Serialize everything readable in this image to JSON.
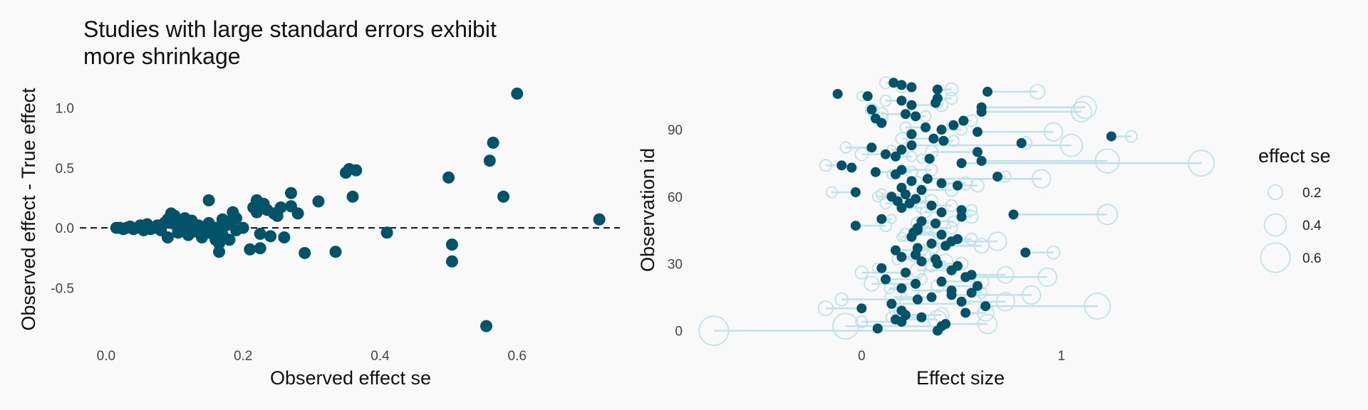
{
  "colors": {
    "point": "#02536a",
    "ghost": "#bfe2e8",
    "zero_line": "#111111",
    "background": "#f9f9f9"
  },
  "chart_data": [
    {
      "type": "scatter",
      "title_lines": [
        "Studies with large standard errors exhibit",
        "more shrinkage"
      ],
      "xlabel": "Observed effect se",
      "ylabel": "Observed effect - True effect",
      "xlim": [
        -0.03,
        0.75
      ],
      "ylim": [
        -0.92,
        1.2
      ],
      "xticks": [
        0.0,
        0.2,
        0.4,
        0.6
      ],
      "xtick_labels": [
        "0.0",
        "0.2",
        "0.4",
        "0.6"
      ],
      "yticks": [
        -0.5,
        0.0,
        0.5,
        1.0
      ],
      "ytick_labels": [
        "-0.5",
        "0.0",
        "0.5",
        "1.0"
      ],
      "reference_line": {
        "y": 0.0,
        "style": "dashed"
      },
      "points": [
        [
          0.015,
          0.0
        ],
        [
          0.02,
          0.0
        ],
        [
          0.025,
          -0.01
        ],
        [
          0.03,
          0.0
        ],
        [
          0.035,
          0.01
        ],
        [
          0.04,
          -0.01
        ],
        [
          0.045,
          0.0
        ],
        [
          0.05,
          0.02
        ],
        [
          0.055,
          -0.02
        ],
        [
          0.06,
          0.01
        ],
        [
          0.06,
          0.03
        ],
        [
          0.065,
          -0.01
        ],
        [
          0.07,
          0.0
        ],
        [
          0.075,
          0.02
        ],
        [
          0.08,
          -0.02
        ],
        [
          0.085,
          0.04
        ],
        [
          0.09,
          0.07
        ],
        [
          0.09,
          -0.08
        ],
        [
          0.095,
          0.12
        ],
        [
          0.1,
          0.1
        ],
        [
          0.1,
          0.03
        ],
        [
          0.105,
          -0.04
        ],
        [
          0.11,
          0.05
        ],
        [
          0.115,
          0.08
        ],
        [
          0.12,
          0.0
        ],
        [
          0.12,
          -0.06
        ],
        [
          0.125,
          0.06
        ],
        [
          0.13,
          -0.03
        ],
        [
          0.135,
          0.02
        ],
        [
          0.14,
          -0.08
        ],
        [
          0.145,
          0.0
        ],
        [
          0.15,
          0.23
        ],
        [
          0.15,
          0.04
        ],
        [
          0.155,
          -0.05
        ],
        [
          0.16,
          -0.1
        ],
        [
          0.16,
          0.0
        ],
        [
          0.165,
          -0.13
        ],
        [
          0.165,
          -0.2
        ],
        [
          0.17,
          0.07
        ],
        [
          0.17,
          -0.06
        ],
        [
          0.175,
          0.02
        ],
        [
          0.18,
          -0.1
        ],
        [
          0.18,
          0.05
        ],
        [
          0.185,
          0.13
        ],
        [
          0.19,
          0.08
        ],
        [
          0.19,
          -0.02
        ],
        [
          0.2,
          0.0
        ],
        [
          0.21,
          -0.18
        ],
        [
          0.215,
          0.17
        ],
        [
          0.22,
          0.23
        ],
        [
          0.22,
          0.13
        ],
        [
          0.225,
          -0.05
        ],
        [
          0.225,
          -0.17
        ],
        [
          0.23,
          0.2
        ],
        [
          0.235,
          0.15
        ],
        [
          0.24,
          -0.07
        ],
        [
          0.245,
          0.12
        ],
        [
          0.25,
          0.1
        ],
        [
          0.255,
          0.17
        ],
        [
          0.26,
          -0.08
        ],
        [
          0.27,
          0.29
        ],
        [
          0.27,
          0.18
        ],
        [
          0.28,
          0.12
        ],
        [
          0.29,
          -0.21
        ],
        [
          0.31,
          0.22
        ],
        [
          0.335,
          -0.2
        ],
        [
          0.35,
          0.46
        ],
        [
          0.355,
          0.49
        ],
        [
          0.36,
          0.26
        ],
        [
          0.365,
          0.48
        ],
        [
          0.41,
          -0.04
        ],
        [
          0.5,
          0.42
        ],
        [
          0.505,
          -0.14
        ],
        [
          0.505,
          -0.28
        ],
        [
          0.555,
          -0.82
        ],
        [
          0.56,
          0.56
        ],
        [
          0.565,
          0.71
        ],
        [
          0.58,
          0.26
        ],
        [
          0.6,
          1.12
        ],
        [
          0.72,
          0.07
        ]
      ]
    },
    {
      "type": "dumbbell",
      "xlabel": "Effect size",
      "ylabel": "Observation id",
      "xlim": [
        -0.8,
        1.75
      ],
      "ylim": [
        -3,
        113
      ],
      "xticks": [
        0,
        1
      ],
      "xtick_labels": [
        "0",
        "1"
      ],
      "yticks": [
        0,
        30,
        60,
        90
      ],
      "ytick_labels": [
        "0",
        "30",
        "60",
        "90"
      ],
      "legend": {
        "title": "effect se",
        "entries": [
          {
            "label": "0.2",
            "se": 0.2
          },
          {
            "label": "0.4",
            "se": 0.4
          },
          {
            "label": "0.6",
            "se": 0.6
          }
        ]
      },
      "observations": [
        {
          "id": 0,
          "observed": -0.74,
          "true": 0.38,
          "se": 0.6
        },
        {
          "id": 1,
          "observed": 0.08,
          "true": 0.08,
          "se": 0.05
        },
        {
          "id": 2,
          "observed": -0.08,
          "true": 0.4,
          "se": 0.5
        },
        {
          "id": 3,
          "observed": 0.63,
          "true": 0.42,
          "se": 0.32
        },
        {
          "id": 4,
          "observed": 0.0,
          "true": 0.2,
          "se": 0.12
        },
        {
          "id": 5,
          "observed": 0.38,
          "true": 0.17,
          "se": 0.3
        },
        {
          "id": 6,
          "observed": 0.15,
          "true": 0.3,
          "se": 0.1
        },
        {
          "id": 7,
          "observed": 0.4,
          "true": 0.22,
          "se": 0.2
        },
        {
          "id": 8,
          "observed": 0.62,
          "true": 0.52,
          "se": 0.25
        },
        {
          "id": 9,
          "observed": 0.16,
          "true": 0.2,
          "se": 0.05
        },
        {
          "id": 10,
          "observed": -0.18,
          "true": 0.0,
          "se": 0.2
        },
        {
          "id": 11,
          "observed": 1.18,
          "true": 0.62,
          "se": 0.5
        },
        {
          "id": 12,
          "observed": 0.55,
          "true": 0.15,
          "se": 0.35
        },
        {
          "id": 13,
          "observed": 0.72,
          "true": 0.5,
          "se": 0.3
        },
        {
          "id": 14,
          "observed": -0.1,
          "true": 0.28,
          "se": 0.15
        },
        {
          "id": 15,
          "observed": 0.16,
          "true": 0.35,
          "se": 0.25
        },
        {
          "id": 16,
          "observed": 0.85,
          "true": 0.45,
          "se": 0.3
        },
        {
          "id": 17,
          "observed": 0.6,
          "true": 0.55,
          "se": 0.1
        },
        {
          "id": 18,
          "observed": 0.25,
          "true": 0.45,
          "se": 0.2
        },
        {
          "id": 19,
          "observed": 0.14,
          "true": 0.2,
          "se": 0.1
        },
        {
          "id": 20,
          "observed": 0.38,
          "true": 0.58,
          "se": 0.15
        },
        {
          "id": 21,
          "observed": 0.05,
          "true": 0.27,
          "se": 0.2
        },
        {
          "id": 22,
          "observed": 0.6,
          "true": 0.4,
          "se": 0.2
        },
        {
          "id": 23,
          "observed": 0.3,
          "true": 0.12,
          "se": 0.1
        },
        {
          "id": 24,
          "observed": 0.93,
          "true": 0.52,
          "se": 0.3
        },
        {
          "id": 25,
          "observed": 0.72,
          "true": 0.55,
          "se": 0.25
        },
        {
          "id": 26,
          "observed": 0.0,
          "true": 0.22,
          "se": 0.15
        },
        {
          "id": 27,
          "observed": 0.28,
          "true": 0.45,
          "se": 0.2
        },
        {
          "id": 28,
          "observed": 0.08,
          "true": 0.1,
          "se": 0.08
        },
        {
          "id": 29,
          "observed": 0.35,
          "true": 0.48,
          "se": 0.12
        },
        {
          "id": 30,
          "observed": 0.5,
          "true": 0.38,
          "se": 0.15
        },
        {
          "id": 31,
          "observed": 0.42,
          "true": 0.3,
          "se": 0.2
        },
        {
          "id": 32,
          "observed": 0.18,
          "true": 0.37,
          "se": 0.1
        },
        {
          "id": 33,
          "observed": 0.26,
          "true": 0.2,
          "se": 0.05
        },
        {
          "id": 34,
          "observed": 0.32,
          "true": 0.27,
          "se": 0.08
        },
        {
          "id": 35,
          "observed": 0.96,
          "true": 0.82,
          "se": 0.15
        },
        {
          "id": 36,
          "observed": 0.3,
          "true": 0.17,
          "se": 0.12
        },
        {
          "id": 37,
          "observed": 0.36,
          "true": 0.28,
          "se": 0.1
        },
        {
          "id": 38,
          "observed": 0.6,
          "true": 0.42,
          "se": 0.2
        },
        {
          "id": 39,
          "observed": 0.4,
          "true": 0.35,
          "se": 0.1
        },
        {
          "id": 40,
          "observed": 0.68,
          "true": 0.45,
          "se": 0.3
        },
        {
          "id": 41,
          "observed": 0.55,
          "true": 0.48,
          "se": 0.12
        },
        {
          "id": 42,
          "observed": 0.2,
          "true": 0.25,
          "se": 0.05
        },
        {
          "id": 43,
          "observed": 0.22,
          "true": 0.4,
          "se": 0.15
        },
        {
          "id": 44,
          "observed": 0.38,
          "true": 0.26,
          "se": 0.12
        },
        {
          "id": 45,
          "observed": 0.32,
          "true": 0.28,
          "se": 0.05
        },
        {
          "id": 46,
          "observed": 0.45,
          "true": 0.28,
          "se": 0.12
        },
        {
          "id": 47,
          "observed": 0.12,
          "true": -0.03,
          "se": 0.12
        },
        {
          "id": 48,
          "observed": 0.28,
          "true": 0.37,
          "se": 0.15
        },
        {
          "id": 49,
          "observed": 0.46,
          "true": 0.3,
          "se": 0.1
        },
        {
          "id": 50,
          "observed": 0.15,
          "true": 0.1,
          "se": 0.05
        },
        {
          "id": 51,
          "observed": 0.55,
          "true": 0.5,
          "se": 0.15
        },
        {
          "id": 52,
          "observed": 1.23,
          "true": 0.76,
          "se": 0.35
        },
        {
          "id": 53,
          "observed": 0.32,
          "true": 0.4,
          "se": 0.1
        },
        {
          "id": 54,
          "observed": 0.55,
          "true": 0.5,
          "se": 0.1
        },
        {
          "id": 55,
          "observed": 0.3,
          "true": 0.2,
          "se": 0.1
        },
        {
          "id": 56,
          "observed": 0.45,
          "true": 0.35,
          "se": 0.12
        },
        {
          "id": 57,
          "observed": 0.12,
          "true": 0.24,
          "se": 0.1
        },
        {
          "id": 58,
          "observed": 0.35,
          "true": 0.18,
          "se": 0.15
        },
        {
          "id": 59,
          "observed": 0.3,
          "true": 0.27,
          "se": 0.05
        },
        {
          "id": 60,
          "observed": 0.08,
          "true": 0.15,
          "se": 0.08
        },
        {
          "id": 61,
          "observed": 0.1,
          "true": 0.22,
          "se": 0.1
        },
        {
          "id": 62,
          "observed": -0.15,
          "true": -0.03,
          "se": 0.1
        },
        {
          "id": 63,
          "observed": 0.45,
          "true": 0.3,
          "se": 0.15
        },
        {
          "id": 64,
          "observed": 0.22,
          "true": 0.2,
          "se": 0.05
        },
        {
          "id": 65,
          "observed": 0.58,
          "true": 0.48,
          "se": 0.15
        },
        {
          "id": 66,
          "observed": 0.52,
          "true": 0.4,
          "se": 0.15
        },
        {
          "id": 67,
          "observed": 0.28,
          "true": 0.25,
          "se": 0.05
        },
        {
          "id": 68,
          "observed": 0.9,
          "true": 0.33,
          "se": 0.3
        },
        {
          "id": 69,
          "observed": 0.72,
          "true": 0.68,
          "se": 0.1
        },
        {
          "id": 70,
          "observed": 0.15,
          "true": 0.17,
          "se": 0.05
        },
        {
          "id": 71,
          "observed": 0.25,
          "true": 0.07,
          "se": 0.12
        },
        {
          "id": 72,
          "observed": 0.35,
          "true": 0.2,
          "se": 0.12
        },
        {
          "id": 73,
          "observed": -0.05,
          "true": -0.05,
          "se": 0.05
        },
        {
          "id": 74,
          "observed": -0.18,
          "true": -0.1,
          "se": 0.12
        },
        {
          "id": 75,
          "observed": 1.7,
          "true": 0.5,
          "se": 0.5
        },
        {
          "id": 76,
          "observed": 1.23,
          "true": 0.6,
          "se": 0.45
        },
        {
          "id": 77,
          "observed": 0.3,
          "true": 0.34,
          "se": 0.05
        },
        {
          "id": 78,
          "observed": 0.25,
          "true": 0.17,
          "se": 0.08
        },
        {
          "id": 79,
          "observed": 0.0,
          "true": 0.12,
          "se": 0.15
        },
        {
          "id": 80,
          "observed": 0.35,
          "true": 0.58,
          "se": 0.15
        },
        {
          "id": 81,
          "observed": 0.15,
          "true": 0.2,
          "se": 0.05
        },
        {
          "id": 82,
          "observed": -0.08,
          "true": 0.05,
          "se": 0.1
        },
        {
          "id": 83,
          "observed": 1.05,
          "true": 0.25,
          "se": 0.4
        },
        {
          "id": 84,
          "observed": 0.82,
          "true": 0.8,
          "se": 0.15
        },
        {
          "id": 85,
          "observed": 0.46,
          "true": 0.41,
          "se": 0.1
        },
        {
          "id": 86,
          "observed": 0.2,
          "true": 0.36,
          "se": 0.12
        },
        {
          "id": 87,
          "observed": 1.35,
          "true": 1.25,
          "se": 0.12
        },
        {
          "id": 88,
          "observed": 0.25,
          "true": 0.25,
          "se": 0.05
        },
        {
          "id": 89,
          "observed": 0.96,
          "true": 0.58,
          "se": 0.3
        },
        {
          "id": 90,
          "observed": 0.5,
          "true": 0.4,
          "se": 0.1
        },
        {
          "id": 91,
          "observed": 0.22,
          "true": 0.32,
          "se": 0.1
        },
        {
          "id": 92,
          "observed": 0.45,
          "true": 0.46,
          "se": 0.05
        },
        {
          "id": 93,
          "observed": 0.1,
          "true": 0.1,
          "se": 0.05
        },
        {
          "id": 94,
          "observed": 0.55,
          "true": 0.51,
          "se": 0.12
        },
        {
          "id": 95,
          "observed": 0.1,
          "true": 0.07,
          "se": 0.15
        },
        {
          "id": 96,
          "observed": 0.32,
          "true": 0.27,
          "se": 0.1
        },
        {
          "id": 97,
          "observed": 0.1,
          "true": 0.22,
          "se": 0.15
        },
        {
          "id": 98,
          "observed": 1.1,
          "true": 0.6,
          "se": 0.35
        },
        {
          "id": 99,
          "observed": 0.05,
          "true": 0.05,
          "se": 0.15
        },
        {
          "id": 100,
          "observed": 1.12,
          "true": 0.6,
          "se": 0.4
        },
        {
          "id": 101,
          "observed": 0.4,
          "true": 0.25,
          "se": 0.15
        },
        {
          "id": 102,
          "observed": 0.38,
          "true": 0.37,
          "se": 0.1
        },
        {
          "id": 103,
          "observed": 0.12,
          "true": 0.2,
          "se": 0.1
        },
        {
          "id": 104,
          "observed": 0.45,
          "true": 0.38,
          "se": 0.12
        },
        {
          "id": 105,
          "observed": 0.0,
          "true": 0.03,
          "se": 0.05
        },
        {
          "id": 106,
          "observed": -0.12,
          "true": -0.12,
          "se": 0.05
        },
        {
          "id": 107,
          "observed": 0.88,
          "true": 0.63,
          "se": 0.2
        },
        {
          "id": 108,
          "observed": 0.45,
          "true": 0.38,
          "se": 0.15
        },
        {
          "id": 109,
          "observed": 0.2,
          "true": 0.25,
          "se": 0.1
        },
        {
          "id": 110,
          "observed": 0.2,
          "true": 0.2,
          "se": 0.05
        },
        {
          "id": 111,
          "observed": 0.12,
          "true": 0.16,
          "se": 0.12
        }
      ]
    }
  ]
}
